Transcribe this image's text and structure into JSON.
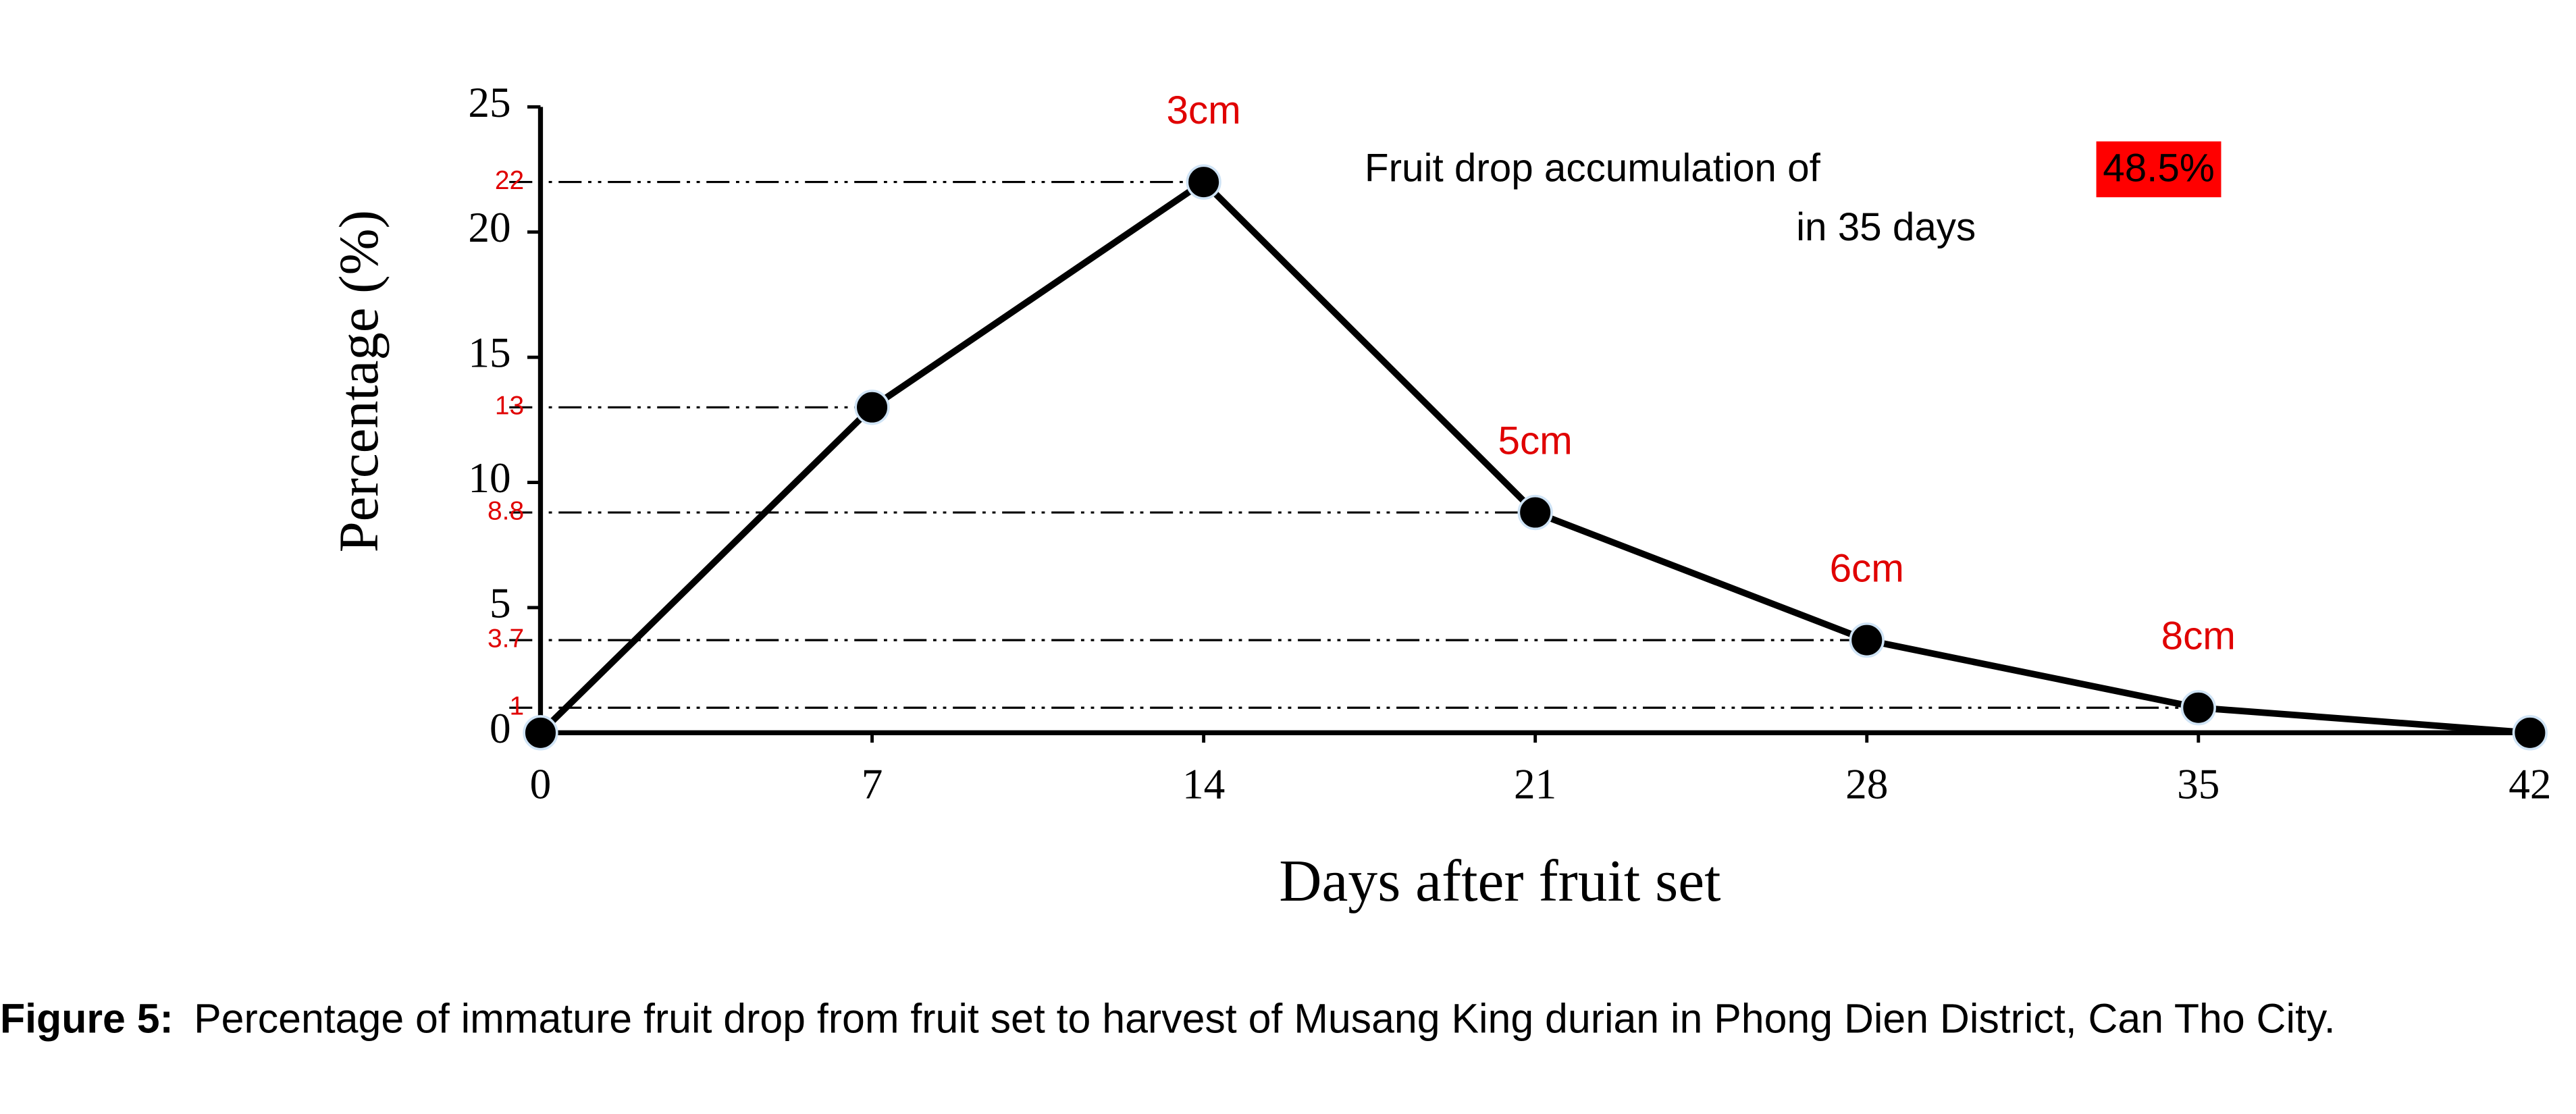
{
  "chart_data": {
    "type": "line",
    "y_label": "Percentage (%)",
    "x_label": "Days after fruit set",
    "x": [
      0,
      7,
      14,
      21,
      28,
      35,
      42
    ],
    "values": [
      0,
      13,
      22,
      8.8,
      3.7,
      1,
      0
    ],
    "point_labels": [
      null,
      null,
      "3cm",
      "5cm",
      "6cm",
      "8cm",
      null
    ],
    "reference_values": [
      22,
      13,
      8.8,
      3.7,
      1
    ],
    "color": "#000000",
    "label_color": "#e00000",
    "xlim": [
      0,
      42
    ],
    "xticks": [
      0,
      7,
      14,
      21,
      28,
      35,
      42
    ],
    "ylim": [
      0,
      25
    ],
    "yticks": [
      0,
      5,
      10,
      15,
      20,
      25
    ],
    "annotation": {
      "text": "Fruit drop accumulation of",
      "highlight": "48.5%",
      "text2": "in 35 days"
    }
  },
  "caption": {
    "label": "Figure 5:",
    "text": "Percentage of immature fruit drop from fruit set to harvest of Musang King durian in Phong Dien District, Can Tho City."
  }
}
